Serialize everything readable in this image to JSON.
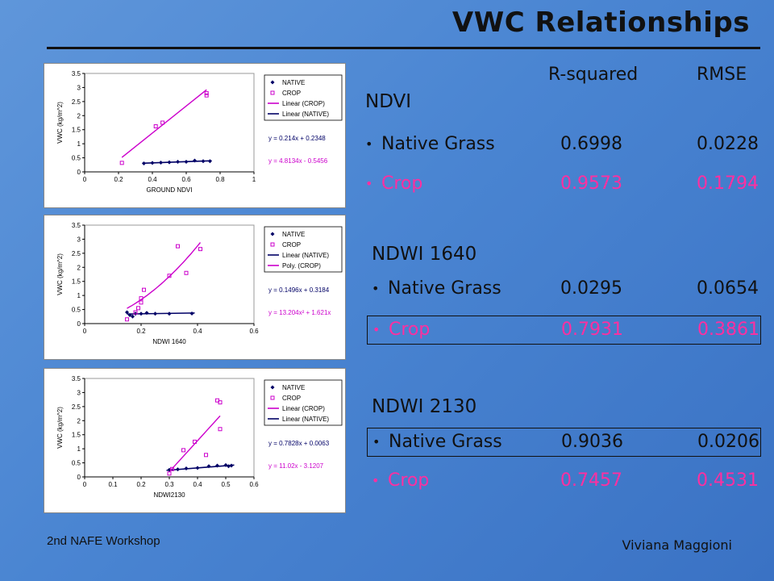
{
  "slide": {
    "title": "VWC Relationships",
    "footer_left": "2nd NAFE Workshop",
    "footer_right": "Viviana Maggioni",
    "colors": {
      "native": "#111111",
      "crop": "#ff2fa0",
      "native_series": "#000066",
      "crop_series": "#cc00cc"
    }
  },
  "table": {
    "col_rsq": "R-squared",
    "col_rmse": "RMSE",
    "sections": [
      {
        "title": "NDVI",
        "rows": [
          {
            "label": "Native Grass",
            "r2": "0.6998",
            "rmse": "0.0228"
          },
          {
            "label": "Crop",
            "r2": "0.9573",
            "rmse": "0.1794"
          }
        ]
      },
      {
        "title": "NDWI 1640",
        "rows": [
          {
            "label": "Native Grass",
            "r2": "0.0295",
            "rmse": "0.0654"
          },
          {
            "label": "Crop",
            "r2": "0.7931",
            "rmse": "0.3861"
          }
        ]
      },
      {
        "title": "NDWI 2130",
        "rows": [
          {
            "label": "Native Grass",
            "r2": "0.9036",
            "rmse": "0.0206"
          },
          {
            "label": "Crop",
            "r2": "0.7457",
            "rmse": "0.4531"
          }
        ]
      }
    ]
  },
  "chart_data": [
    {
      "type": "scatter",
      "xlabel": "GROUND NDVI",
      "ylabel": "VWC (kg/m^2)",
      "xlim": [
        0,
        1
      ],
      "ylim": [
        0,
        3.5
      ],
      "xticks": [
        "0",
        "0.2",
        "0.4",
        "0.6",
        "0.8",
        "1"
      ],
      "yticks": [
        "0",
        "0.5",
        "1",
        "1.5",
        "2",
        "2.5",
        "3",
        "3.5"
      ],
      "legend": [
        "NATIVE",
        "CROP",
        "Linear (CROP)",
        "Linear (NATIVE)"
      ],
      "eq_native": "y = 0.214x + 0.2348",
      "eq_crop": "y = 4.8134x - 0.5456",
      "native_points": [
        [
          0.35,
          0.3
        ],
        [
          0.4,
          0.32
        ],
        [
          0.45,
          0.33
        ],
        [
          0.5,
          0.34
        ],
        [
          0.55,
          0.36
        ],
        [
          0.6,
          0.36
        ],
        [
          0.65,
          0.4
        ],
        [
          0.7,
          0.38
        ],
        [
          0.74,
          0.38
        ]
      ],
      "crop_points": [
        [
          0.22,
          0.32
        ],
        [
          0.42,
          1.62
        ],
        [
          0.46,
          1.75
        ],
        [
          0.72,
          2.72
        ],
        [
          0.72,
          2.8
        ]
      ],
      "native_fit": {
        "slope": 0.214,
        "intercept": 0.2348,
        "x": [
          0.34,
          0.75
        ]
      },
      "crop_fit": {
        "slope": 4.8134,
        "intercept": -0.5456,
        "x": [
          0.22,
          0.72
        ]
      }
    },
    {
      "type": "scatter",
      "xlabel": "NDWI 1640",
      "ylabel": "VWC (kg/m^2)",
      "xlim": [
        0,
        0.6
      ],
      "ylim": [
        0,
        3.5
      ],
      "xticks": [
        "0",
        "0.2",
        "0.4",
        "0.6"
      ],
      "yticks": [
        "0",
        "0.5",
        "1",
        "1.5",
        "2",
        "2.5",
        "3",
        "3.5"
      ],
      "legend": [
        "NATIVE",
        "CROP",
        "Linear (NATIVE)",
        "Poly. (CROP)"
      ],
      "eq_native": "y = 0.1496x + 0.3184",
      "eq_crop": "y = 13.204x² + 1.621x",
      "native_points": [
        [
          0.15,
          0.4
        ],
        [
          0.16,
          0.3
        ],
        [
          0.17,
          0.25
        ],
        [
          0.18,
          0.35
        ],
        [
          0.2,
          0.35
        ],
        [
          0.22,
          0.38
        ],
        [
          0.25,
          0.35
        ],
        [
          0.3,
          0.35
        ],
        [
          0.38,
          0.36
        ]
      ],
      "crop_points": [
        [
          0.15,
          0.15
        ],
        [
          0.18,
          0.4
        ],
        [
          0.19,
          0.55
        ],
        [
          0.2,
          0.75
        ],
        [
          0.2,
          0.9
        ],
        [
          0.21,
          1.2
        ],
        [
          0.3,
          1.7
        ],
        [
          0.33,
          2.75
        ],
        [
          0.36,
          1.8
        ],
        [
          0.41,
          2.65
        ]
      ],
      "native_fit": {
        "slope": 0.1496,
        "intercept": 0.3184,
        "x": [
          0.15,
          0.39
        ]
      },
      "crop_fit": {
        "a": 13.204,
        "b": 1.621,
        "x": [
          0.15,
          0.41
        ]
      }
    },
    {
      "type": "scatter",
      "xlabel": "NDWI2130",
      "ylabel": "VWC (kg/m^2)",
      "xlim": [
        0,
        0.6
      ],
      "ylim": [
        0,
        3.5
      ],
      "xticks": [
        "0",
        "0.1",
        "0.2",
        "0.3",
        "0.4",
        "0.5",
        "0.6"
      ],
      "yticks": [
        "0",
        "0.5",
        "1",
        "1.5",
        "2",
        "2.5",
        "3",
        "3.5"
      ],
      "legend": [
        "NATIVE",
        "CROP",
        "Linear (CROP)",
        "Linear (NATIVE)"
      ],
      "eq_native": "y = 0.7828x + 0.0063",
      "eq_crop": "y = 11.02x - 3.1207",
      "native_points": [
        [
          0.3,
          0.25
        ],
        [
          0.33,
          0.27
        ],
        [
          0.36,
          0.3
        ],
        [
          0.4,
          0.32
        ],
        [
          0.44,
          0.38
        ],
        [
          0.47,
          0.4
        ],
        [
          0.5,
          0.42
        ],
        [
          0.51,
          0.38
        ],
        [
          0.52,
          0.4
        ]
      ],
      "crop_points": [
        [
          0.3,
          0.12
        ],
        [
          0.31,
          0.28
        ],
        [
          0.35,
          0.95
        ],
        [
          0.39,
          1.25
        ],
        [
          0.43,
          0.78
        ],
        [
          0.47,
          2.72
        ],
        [
          0.48,
          2.65
        ],
        [
          0.48,
          1.7
        ]
      ],
      "native_fit": {
        "slope": 0.7828,
        "intercept": 0.0063,
        "x": [
          0.29,
          0.53
        ]
      },
      "crop_fit": {
        "slope": 11.02,
        "intercept": -3.1207,
        "x": [
          0.3,
          0.48
        ]
      }
    }
  ]
}
